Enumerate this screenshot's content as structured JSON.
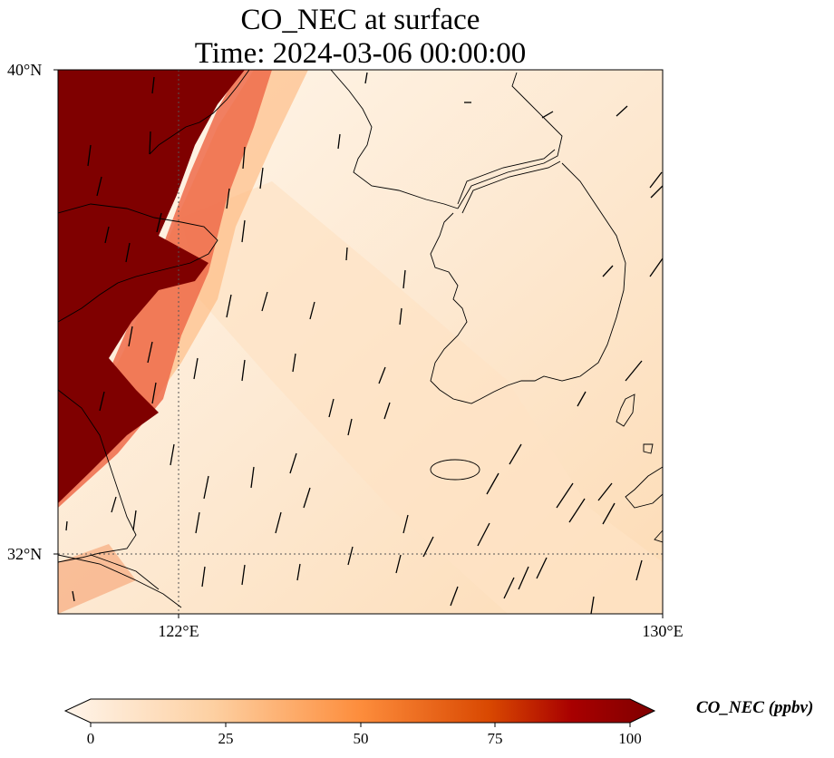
{
  "title_line1": "CO_NEC at surface",
  "title_line2": "Time: 2024-03-06 00:00:00",
  "lat_ticks": [
    "40°N",
    "32°N"
  ],
  "lon_ticks": [
    "122°E",
    "130°E"
  ],
  "colorbar": {
    "label": "CO_NEC (ppbv)",
    "ticks": [
      "0",
      "25",
      "50",
      "75",
      "100"
    ],
    "colors": [
      "#fff5eb",
      "#fdd0a2",
      "#fd8d3c",
      "#d94801",
      "#a80000",
      "#7f0000"
    ]
  },
  "map": {
    "extent_lon": [
      120,
      130
    ],
    "extent_lat": [
      31,
      40
    ],
    "high_color": "#7f0000",
    "low_color": "#fff3e3",
    "coast_color": "#000000"
  }
}
